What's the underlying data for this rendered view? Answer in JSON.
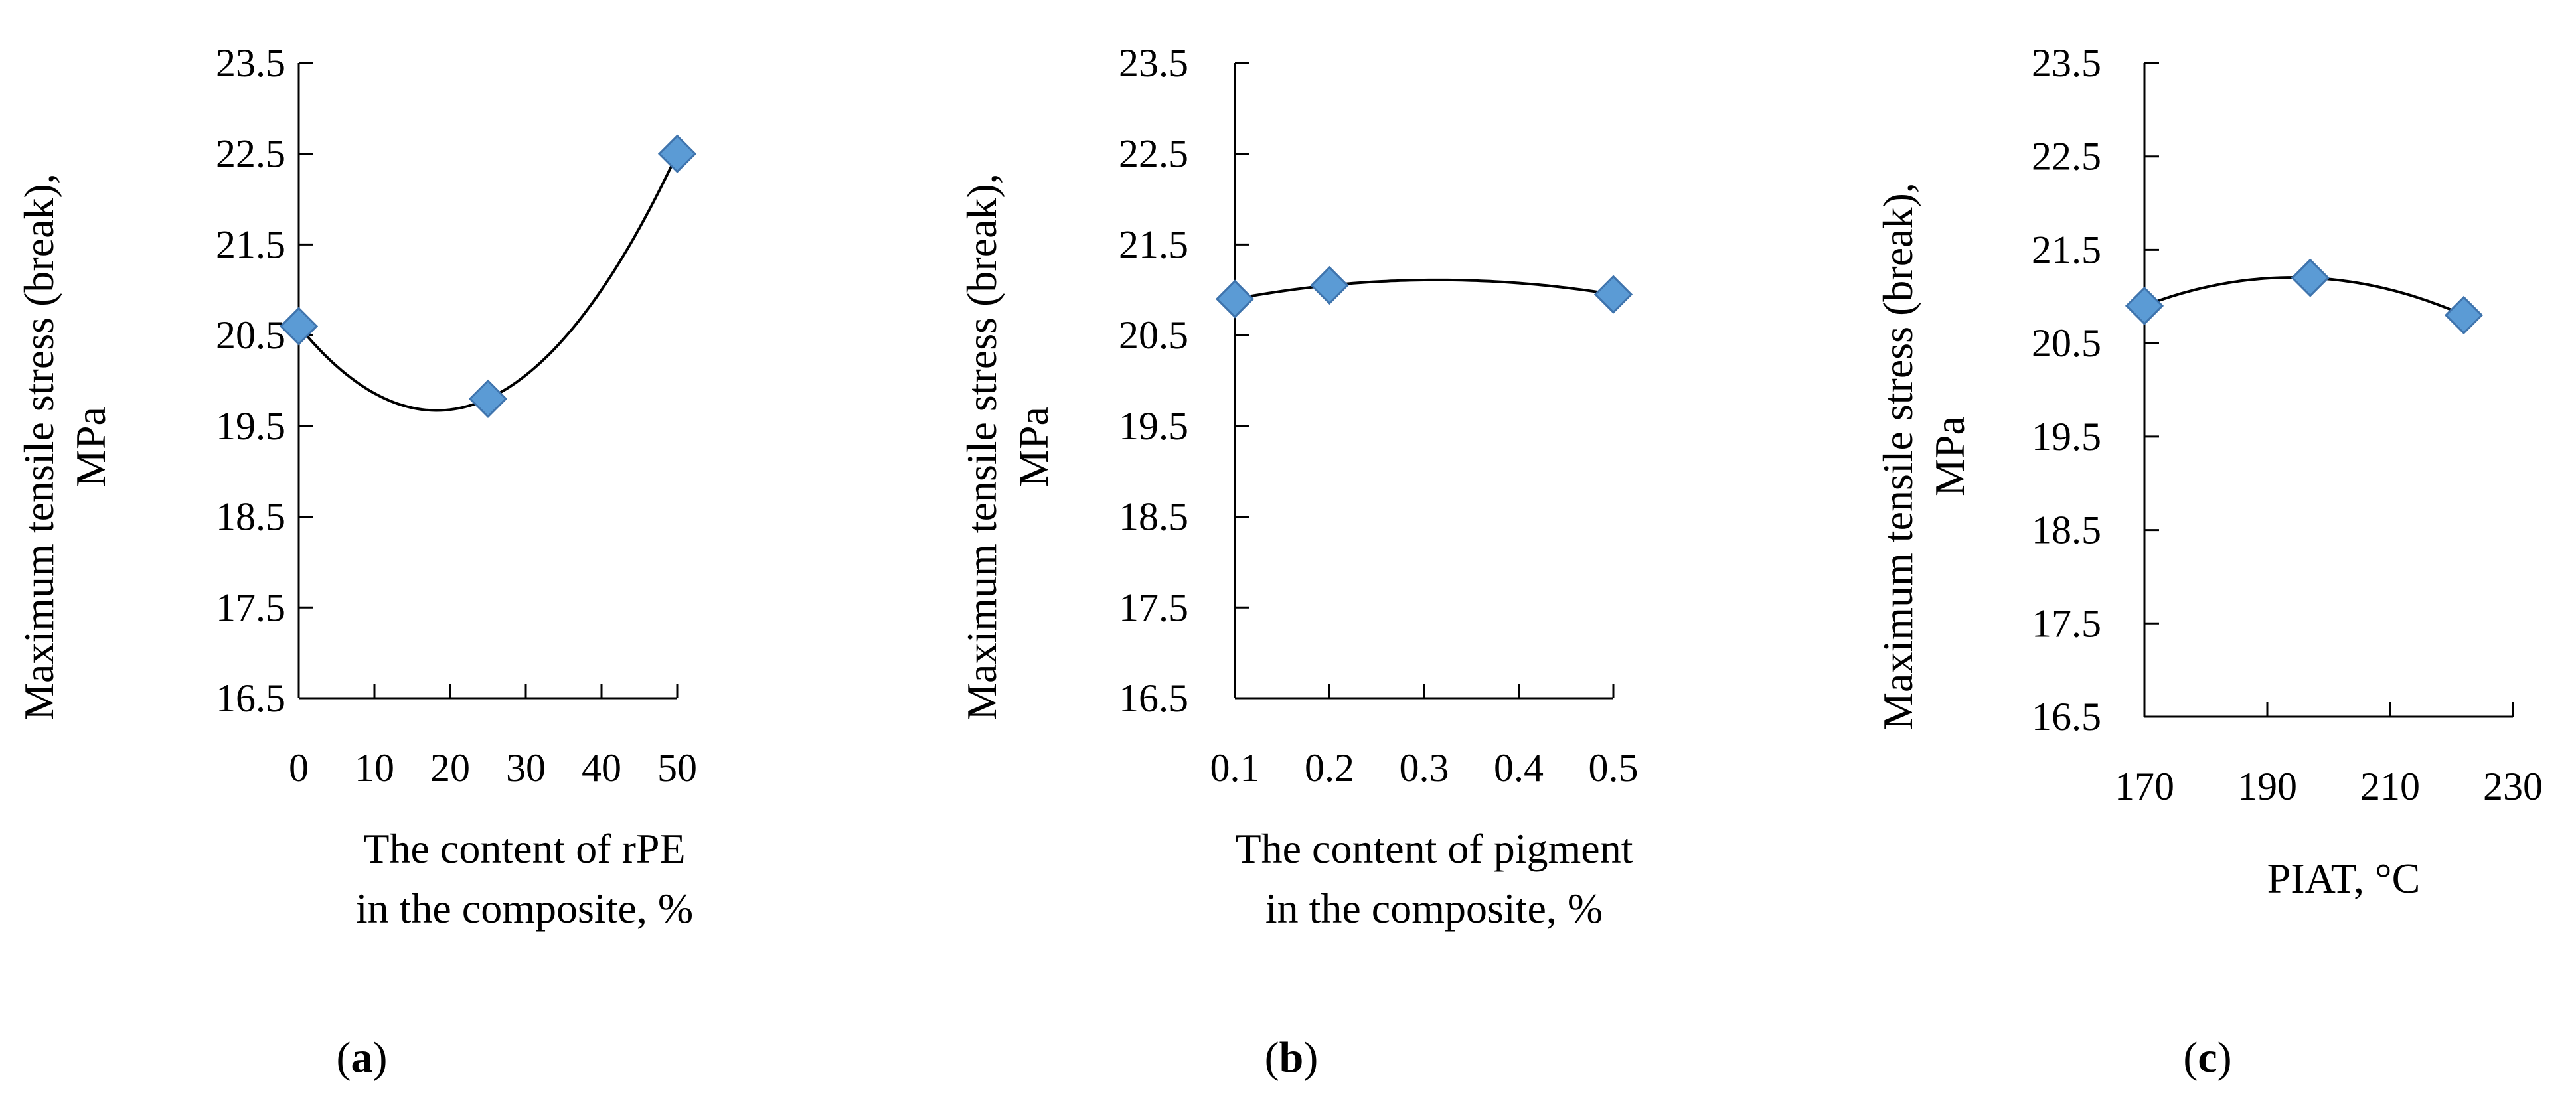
{
  "colors": {
    "marker": "#5b9bd5",
    "line": "#000000"
  },
  "chart_data": [
    {
      "type": "scatter",
      "panel": "a",
      "xlabel": [
        "The content of rPE",
        "in the composite, %"
      ],
      "ylabel": [
        "Maximum tensile stress (break),",
        "MPa"
      ],
      "xlim": [
        0,
        50
      ],
      "ylim": [
        16.5,
        23.5
      ],
      "x_ticks": [
        "0",
        "10",
        "20",
        "30",
        "40",
        "50"
      ],
      "y_ticks": [
        "16.5",
        "17.5",
        "18.5",
        "19.5",
        "20.5",
        "21.5",
        "22.5",
        "23.5"
      ],
      "series": [
        {
          "x": [
            0,
            25,
            50
          ],
          "y": [
            20.6,
            19.8,
            22.5
          ]
        }
      ],
      "trendline": "polynomial-2",
      "grid": false
    },
    {
      "type": "scatter",
      "panel": "b",
      "xlabel": [
        "The content of pigment",
        "in the composite, %"
      ],
      "ylabel": [
        "Maximum tensile stress (break),",
        "MPa"
      ],
      "xlim": [
        0.1,
        0.5
      ],
      "ylim": [
        16.5,
        23.5
      ],
      "x_ticks": [
        "0.1",
        "0.2",
        "0.3",
        "0.4",
        "0.5"
      ],
      "y_ticks": [
        "16.5",
        "17.5",
        "18.5",
        "19.5",
        "20.5",
        "21.5",
        "22.5",
        "23.5"
      ],
      "series": [
        {
          "x": [
            0.1,
            0.2,
            0.5
          ],
          "y": [
            20.9,
            21.05,
            20.95
          ]
        }
      ],
      "trendline": "polynomial-2",
      "grid": false
    },
    {
      "type": "scatter",
      "panel": "c",
      "xlabel": [
        "PIAT, °C"
      ],
      "ylabel": [
        "Maximum tensile stress (break),",
        "MPa"
      ],
      "xlim": [
        170,
        230
      ],
      "ylim": [
        16.5,
        23.5
      ],
      "x_ticks": [
        "170",
        "190",
        "210",
        "230"
      ],
      "y_ticks": [
        "16.5",
        "17.5",
        "18.5",
        "19.5",
        "20.5",
        "21.5",
        "22.5",
        "23.5"
      ],
      "series": [
        {
          "x": [
            170,
            197,
            222
          ],
          "y": [
            20.9,
            21.2,
            20.8
          ]
        }
      ],
      "trendline": "polynomial-2",
      "grid": false
    }
  ]
}
